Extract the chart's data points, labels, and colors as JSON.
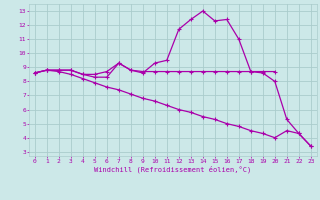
{
  "xlabel": "Windchill (Refroidissement éolien,°C)",
  "bg_color": "#cce8e8",
  "grid_color": "#aacccc",
  "line_color": "#aa00aa",
  "spine_color": "#aaaaaa",
  "x_ticks": [
    0,
    1,
    2,
    3,
    4,
    5,
    6,
    7,
    8,
    9,
    10,
    11,
    12,
    13,
    14,
    15,
    16,
    17,
    18,
    19,
    20,
    21,
    22,
    23
  ],
  "y_ticks": [
    3,
    4,
    5,
    6,
    7,
    8,
    9,
    10,
    11,
    12,
    13
  ],
  "xlim": [
    -0.5,
    23.5
  ],
  "ylim": [
    2.7,
    13.5
  ],
  "line1_x": [
    0,
    1,
    2,
    3,
    4,
    5,
    6,
    7,
    8,
    9,
    10,
    11,
    12,
    13,
    14,
    15,
    16,
    17,
    18,
    19,
    20
  ],
  "line1_y": [
    8.6,
    8.8,
    8.8,
    8.8,
    8.5,
    8.5,
    8.7,
    9.3,
    8.8,
    8.7,
    8.7,
    8.7,
    8.7,
    8.7,
    8.7,
    8.7,
    8.7,
    8.7,
    8.7,
    8.7,
    8.7
  ],
  "line2_x": [
    0,
    1,
    2,
    3,
    4,
    5,
    6,
    7,
    8,
    9,
    10,
    11,
    12,
    13,
    14,
    15,
    16,
    17,
    18,
    19,
    20,
    21,
    22,
    23
  ],
  "line2_y": [
    8.6,
    8.8,
    8.8,
    8.8,
    8.5,
    8.3,
    8.3,
    9.3,
    8.8,
    8.6,
    9.3,
    9.5,
    11.7,
    12.4,
    13.0,
    12.3,
    12.4,
    11.0,
    8.7,
    8.6,
    8.0,
    5.3,
    4.3,
    3.4
  ],
  "line3_x": [
    0,
    1,
    2,
    3,
    4,
    5,
    6,
    7,
    8,
    9,
    10,
    11,
    12,
    13,
    14,
    15,
    16,
    17,
    18,
    19,
    20,
    21,
    22,
    23
  ],
  "line3_y": [
    8.6,
    8.8,
    8.7,
    8.5,
    8.2,
    7.9,
    7.6,
    7.4,
    7.1,
    6.8,
    6.6,
    6.3,
    6.0,
    5.8,
    5.5,
    5.3,
    5.0,
    4.8,
    4.5,
    4.3,
    4.0,
    4.5,
    4.3,
    3.4
  ]
}
